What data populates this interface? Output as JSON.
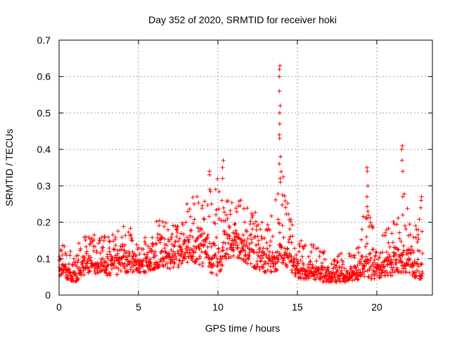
{
  "chart_data": {
    "type": "scatter",
    "title": "Day 352 of 2020, SRMTID for receiver hoki",
    "xlabel": "GPS time / hours",
    "ylabel": "SRMTID / TECUs",
    "xlim": [
      0,
      23.5
    ],
    "ylim": [
      0,
      0.7
    ],
    "xticks": [
      0,
      5,
      10,
      15,
      20
    ],
    "yticks": [
      0,
      0.1,
      0.2,
      0.3,
      0.4,
      0.5,
      0.6,
      0.7
    ],
    "xtick_labels": [
      "0",
      "5",
      "10",
      "15",
      "20"
    ],
    "ytick_labels": [
      "0",
      "0.1",
      "0.2",
      "0.3",
      "0.4",
      "0.5",
      "0.6",
      "0.7"
    ],
    "grid": true,
    "marker": "+",
    "color": "#ff0000",
    "x_range_of_points": [
      0,
      22.9
    ],
    "series": [
      {
        "name": "SRMTID",
        "profile": {
          "x": [
            0,
            0.5,
            1.0,
            1.5,
            2.0,
            2.5,
            3.0,
            3.5,
            4.0,
            4.5,
            5.0,
            5.5,
            6.0,
            6.5,
            7.0,
            7.5,
            8.0,
            8.5,
            9.0,
            9.5,
            10.0,
            10.5,
            11.0,
            11.5,
            12.0,
            12.5,
            13.0,
            13.5,
            13.8,
            14.0,
            14.5,
            15.0,
            15.5,
            16.0,
            16.5,
            17.0,
            17.5,
            18.0,
            18.5,
            19.0,
            19.3,
            19.6,
            20.0,
            20.5,
            21.0,
            21.5,
            22.0,
            22.5,
            22.9
          ],
          "y_low": [
            0.06,
            0.05,
            0.04,
            0.06,
            0.06,
            0.07,
            0.06,
            0.06,
            0.07,
            0.07,
            0.07,
            0.07,
            0.08,
            0.09,
            0.08,
            0.08,
            0.1,
            0.1,
            0.09,
            0.07,
            0.06,
            0.11,
            0.12,
            0.11,
            0.09,
            0.08,
            0.07,
            0.07,
            0.08,
            0.1,
            0.08,
            0.05,
            0.05,
            0.05,
            0.04,
            0.04,
            0.04,
            0.04,
            0.04,
            0.05,
            0.06,
            0.05,
            0.05,
            0.06,
            0.06,
            0.07,
            0.07,
            0.05,
            0.05
          ],
          "y_mid": [
            0.09,
            0.09,
            0.08,
            0.1,
            0.12,
            0.12,
            0.12,
            0.11,
            0.13,
            0.12,
            0.11,
            0.11,
            0.13,
            0.15,
            0.14,
            0.13,
            0.17,
            0.18,
            0.17,
            0.15,
            0.15,
            0.17,
            0.18,
            0.19,
            0.16,
            0.14,
            0.13,
            0.14,
            0.16,
            0.18,
            0.15,
            0.09,
            0.08,
            0.09,
            0.08,
            0.08,
            0.07,
            0.07,
            0.08,
            0.09,
            0.14,
            0.12,
            0.11,
            0.12,
            0.12,
            0.13,
            0.12,
            0.12,
            0.15
          ],
          "y_high": [
            0.14,
            0.15,
            0.12,
            0.21,
            0.18,
            0.17,
            0.19,
            0.17,
            0.21,
            0.2,
            0.17,
            0.17,
            0.22,
            0.23,
            0.21,
            0.2,
            0.27,
            0.3,
            0.27,
            0.34,
            0.37,
            0.28,
            0.28,
            0.28,
            0.27,
            0.25,
            0.23,
            0.24,
            0.63,
            0.38,
            0.25,
            0.17,
            0.15,
            0.16,
            0.13,
            0.14,
            0.12,
            0.13,
            0.14,
            0.17,
            0.36,
            0.22,
            0.18,
            0.19,
            0.21,
            0.41,
            0.25,
            0.2,
            0.27
          ]
        },
        "spikes": [
          {
            "x": 13.9,
            "values": [
              0.63,
              0.62,
              0.6,
              0.56,
              0.52,
              0.5,
              0.47,
              0.44,
              0.43,
              0.38,
              0.36,
              0.32,
              0.31
            ]
          },
          {
            "x": 9.5,
            "values": [
              0.34,
              0.33,
              0.29
            ]
          },
          {
            "x": 10.3,
            "values": [
              0.37,
              0.35,
              0.32
            ]
          },
          {
            "x": 19.4,
            "values": [
              0.35,
              0.34,
              0.3,
              0.27,
              0.23,
              0.21
            ]
          },
          {
            "x": 21.6,
            "values": [
              0.41,
              0.4,
              0.37,
              0.34,
              0.27,
              0.22
            ]
          },
          {
            "x": 22.8,
            "values": [
              0.27,
              0.26,
              0.24
            ]
          }
        ]
      }
    ]
  }
}
